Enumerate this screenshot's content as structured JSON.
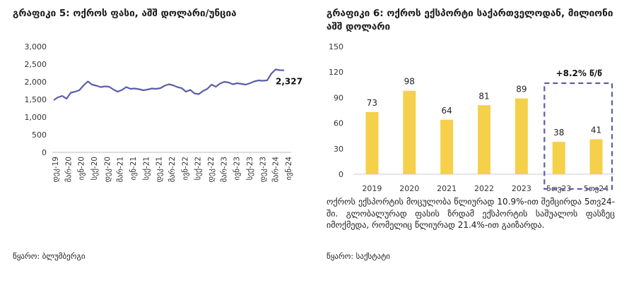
{
  "left": {
    "title": "გრაფიკი 5: ოქროს ფასი, აშშ დოლარი/უნცია",
    "source": "წყარო: ბლუმბერგი"
  },
  "right": {
    "title": "გრაფიკი 6: ოქროს ექსპორტი საქართველოდან, მილიონი აშშ დოლარი",
    "description": "ოქროს ექსპორტის მოცულობა წლიურად 10.9%-ით შემცირდა 5თვ24-ში. გლობალურად ფასის ზრდამ ექსპორტის საშუალოს ფასზეც იმოქმედა, რომელიც წლიურად 21.4%-ით გაიზარდა.",
    "source": "წყარო: საქსტატი"
  },
  "chart_data": [
    {
      "type": "line",
      "title": "გრაფიკი 5: ოქროს ფასი, აშშ დოლარი/უნცია",
      "ylim": [
        0,
        3000
      ],
      "yticks": [
        "0",
        "500",
        "1,000",
        "1,500",
        "2,000",
        "2,500",
        "3,000"
      ],
      "xticks": [
        "დეკ-19",
        "მარ-20",
        "ივნ-20",
        "სექ-20",
        "დეკ-20",
        "მარ-21",
        "ივნ-21",
        "სექ-21",
        "დეკ-21",
        "მარ-22",
        "ივნ-22",
        "სექ-22",
        "დეკ-22",
        "მარ-23",
        "ივნ-23",
        "სექ-23",
        "დეკ-23",
        "მარ-24",
        "ივნ-24"
      ],
      "x": [
        "2019-12",
        "2020-01",
        "2020-02",
        "2020-03",
        "2020-04",
        "2020-05",
        "2020-06",
        "2020-07",
        "2020-08",
        "2020-09",
        "2020-10",
        "2020-11",
        "2020-12",
        "2021-01",
        "2021-02",
        "2021-03",
        "2021-04",
        "2021-05",
        "2021-06",
        "2021-07",
        "2021-08",
        "2021-09",
        "2021-10",
        "2021-11",
        "2021-12",
        "2022-01",
        "2022-02",
        "2022-03",
        "2022-04",
        "2022-05",
        "2022-06",
        "2022-07",
        "2022-08",
        "2022-09",
        "2022-10",
        "2022-11",
        "2022-12",
        "2023-01",
        "2023-02",
        "2023-03",
        "2023-04",
        "2023-05",
        "2023-06",
        "2023-07",
        "2023-08",
        "2023-09",
        "2023-10",
        "2023-11",
        "2023-12",
        "2024-01",
        "2024-02",
        "2024-03",
        "2024-04",
        "2024-05",
        "2024-06"
      ],
      "values": [
        1480,
        1560,
        1600,
        1520,
        1690,
        1720,
        1760,
        1900,
        2010,
        1920,
        1890,
        1850,
        1870,
        1860,
        1780,
        1720,
        1770,
        1850,
        1800,
        1810,
        1790,
        1760,
        1780,
        1810,
        1800,
        1820,
        1890,
        1930,
        1900,
        1850,
        1820,
        1720,
        1770,
        1670,
        1650,
        1740,
        1800,
        1920,
        1860,
        1950,
        2000,
        1980,
        1930,
        1960,
        1940,
        1920,
        1960,
        2010,
        2040,
        2030,
        2040,
        2230,
        2350,
        2330,
        2327
      ],
      "end_label": "2,327",
      "series": [
        {
          "values_ref": "values",
          "color": "#5b5ea8"
        }
      ]
    },
    {
      "type": "bar",
      "title": "გრაფიკი 6: ოქროს ექსპორტი საქართველოდან, მილიონი აშშ დოლარი",
      "categories": [
        "2019",
        "2020",
        "2021",
        "2022",
        "2023",
        "5თვ23",
        "5თვ24"
      ],
      "values": [
        73,
        98,
        64,
        81,
        89,
        38,
        41
      ],
      "ylim": [
        0,
        150
      ],
      "yticks": [
        "0",
        "30",
        "60",
        "90",
        "120",
        "150"
      ],
      "bar_color": "#f5d04a",
      "annotation": "+8.2% წ/წ",
      "annotation_box_color": "#5b5ea8"
    }
  ]
}
